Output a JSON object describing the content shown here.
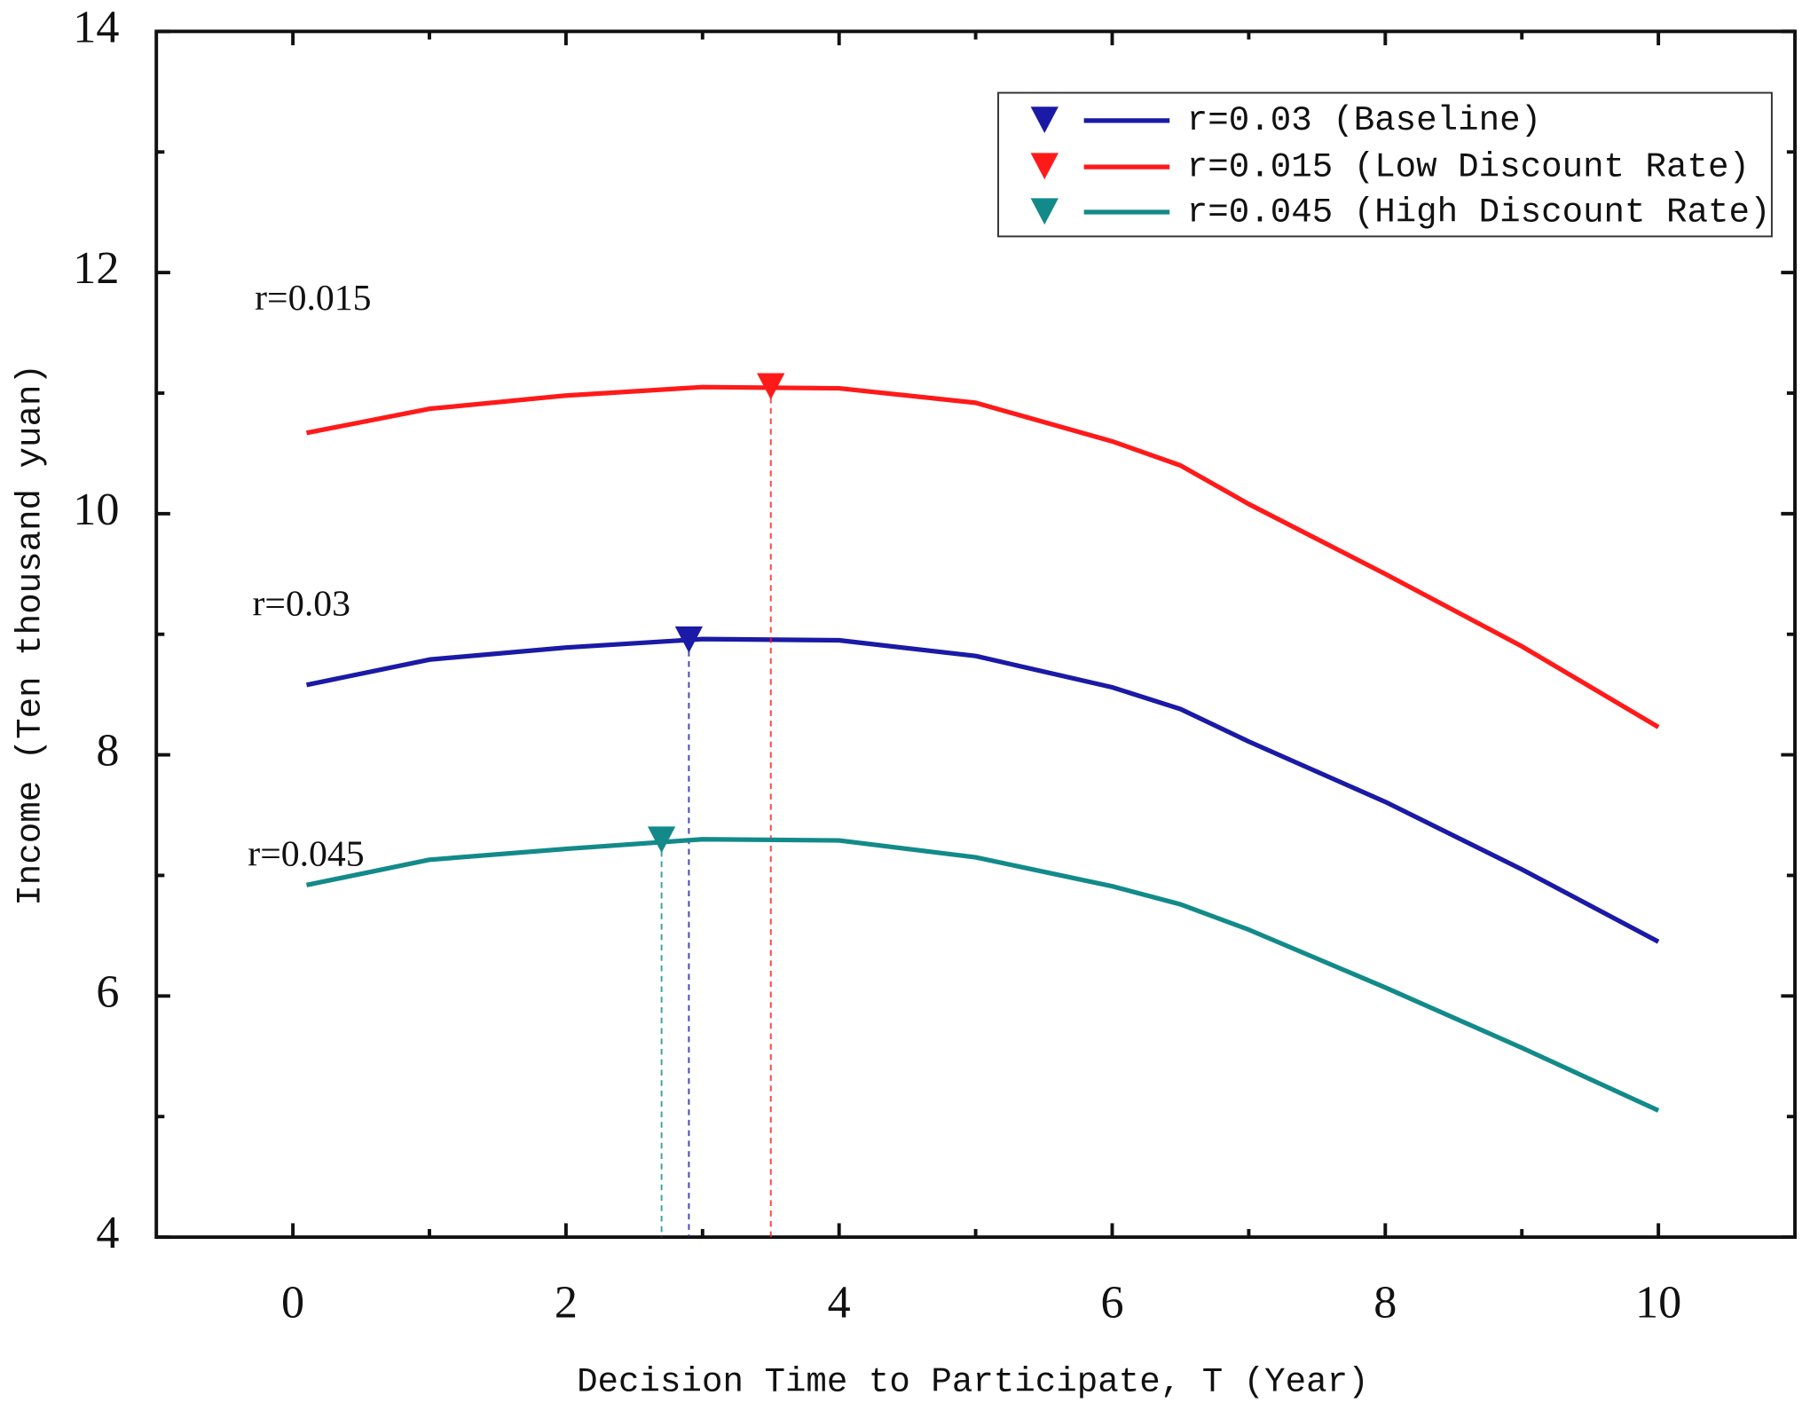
{
  "chart_data": {
    "type": "line",
    "x_label": "Decision Time to Participate, T (Year)",
    "y_label": "Income (Ten thousand yuan)",
    "xlim": [
      -1,
      11
    ],
    "ylim": [
      4,
      14
    ],
    "xticks": [
      0,
      2,
      4,
      6,
      8,
      10
    ],
    "yticks": [
      4,
      6,
      8,
      10,
      12,
      14
    ],
    "xminorticks": [
      1,
      3,
      5,
      7,
      9
    ],
    "yminorticks": [
      5,
      7,
      9,
      11,
      13
    ],
    "legend_position": "upper right",
    "x": [
      0.1,
      1,
      2,
      3,
      4,
      5,
      6,
      6.5,
      7,
      8,
      9,
      10
    ],
    "series": [
      {
        "name": "r=0.03 (Baseline)",
        "color": "#1a1aa6",
        "values": [
          8.58,
          8.79,
          8.89,
          8.96,
          8.95,
          8.82,
          8.56,
          8.38,
          8.11,
          7.61,
          7.05,
          6.45
        ],
        "optimum_x": 2.9,
        "optimum_y": 8.95
      },
      {
        "name": "r=0.015 (Low Discount Rate)",
        "color": "#ff1a1a",
        "values": [
          10.67,
          10.87,
          10.98,
          11.05,
          11.04,
          10.92,
          10.6,
          10.4,
          10.08,
          9.5,
          8.9,
          8.23
        ],
        "optimum_x": 3.5,
        "optimum_y": 11.05
      },
      {
        "name": "r=0.045 (High Discount Rate)",
        "color": "#138a8a",
        "values": [
          6.92,
          7.13,
          7.22,
          7.3,
          7.29,
          7.15,
          6.91,
          6.76,
          6.55,
          6.07,
          5.57,
          5.05
        ],
        "optimum_x": 2.7,
        "optimum_y": 7.29
      }
    ],
    "annotations": [
      "r=0.015",
      "r=0.03",
      "r=0.045"
    ]
  }
}
